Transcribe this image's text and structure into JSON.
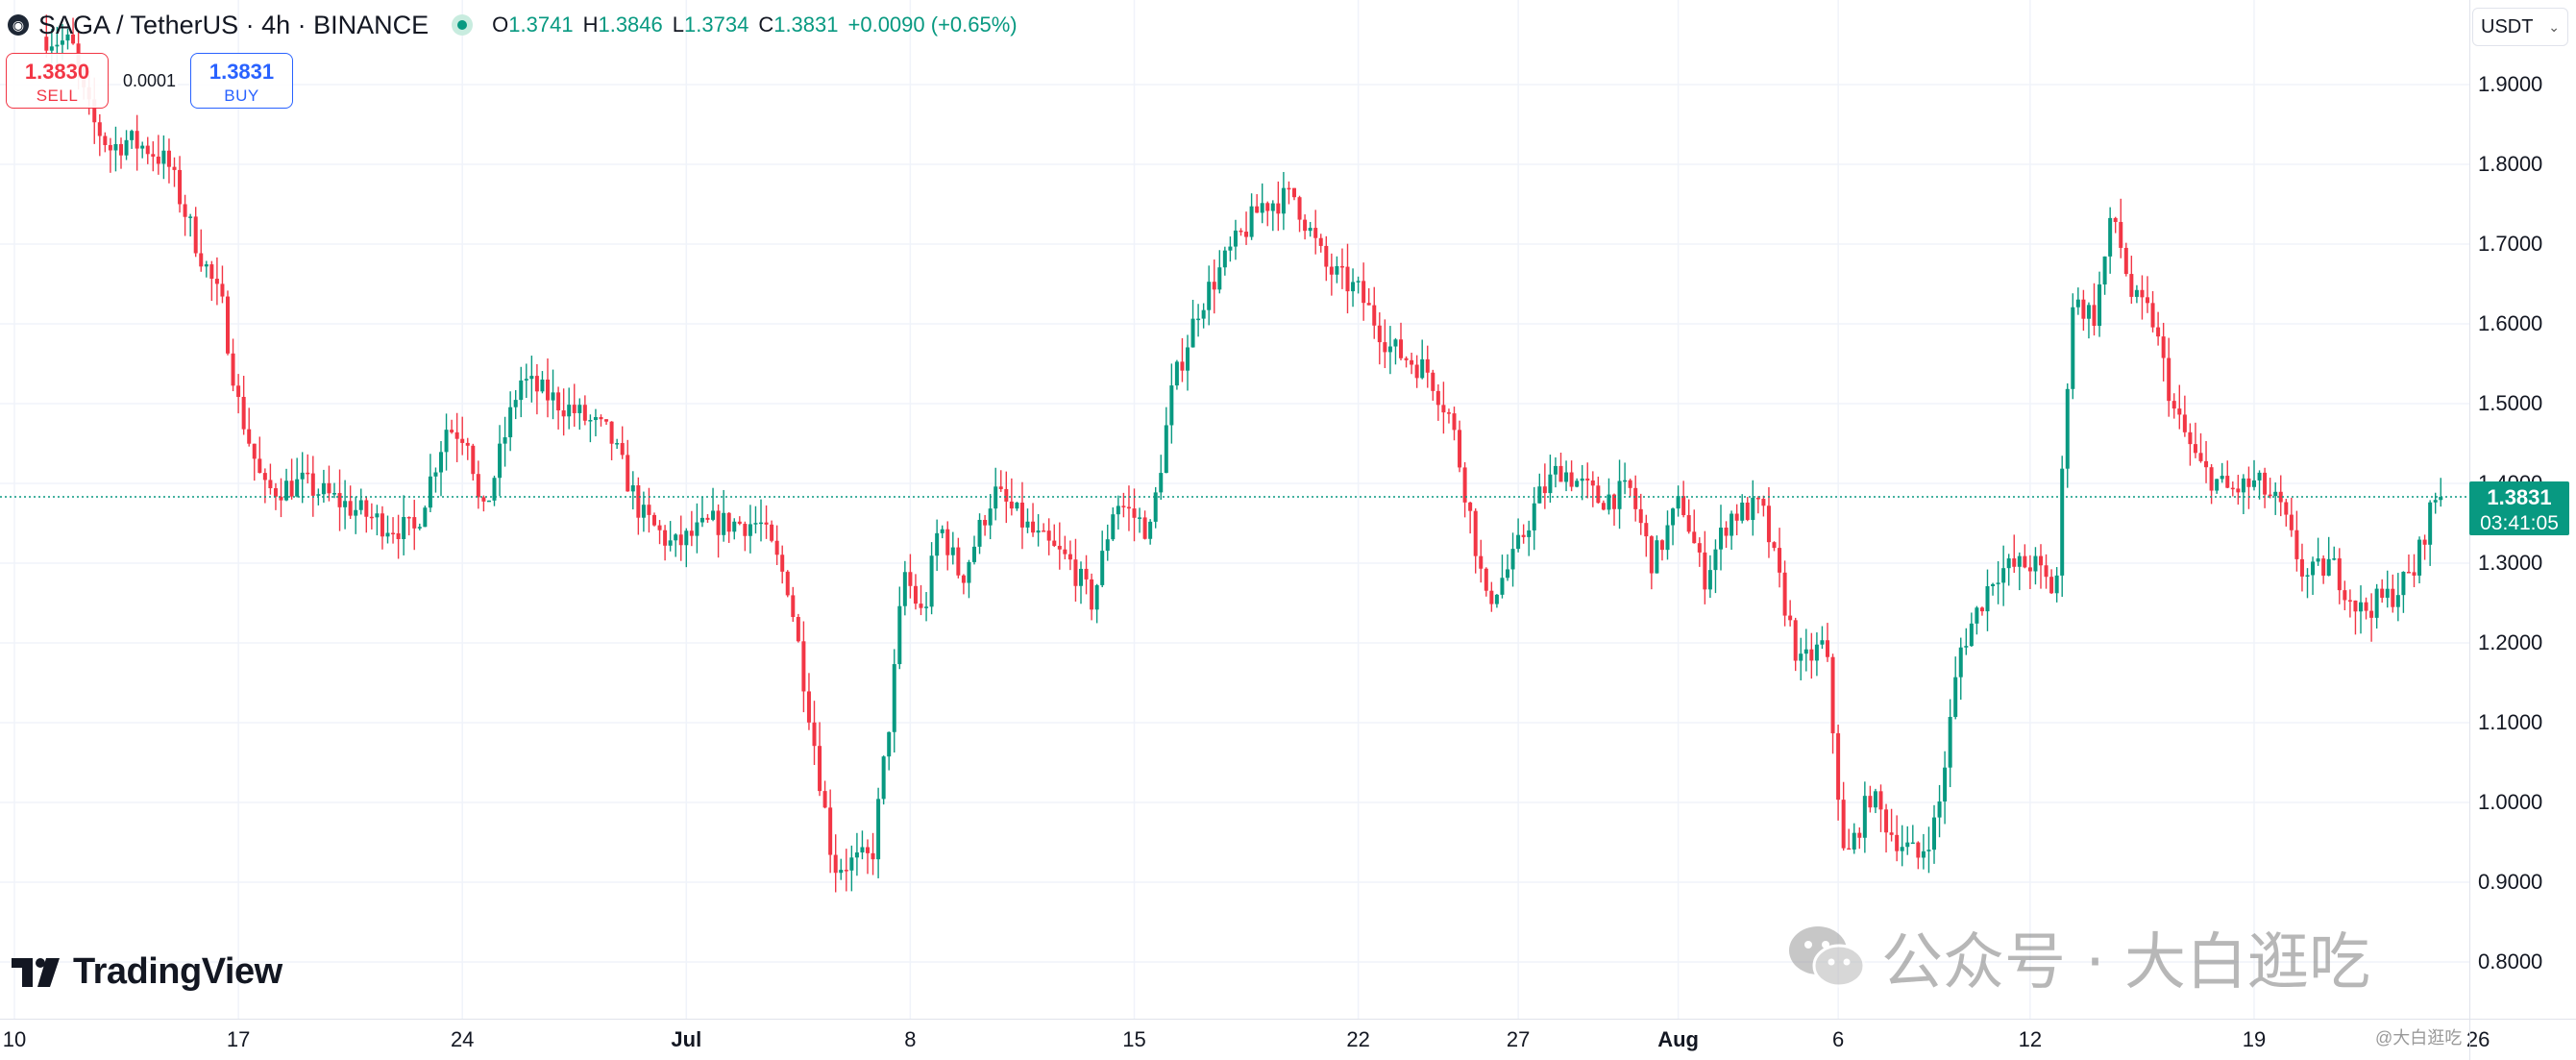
{
  "legend": {
    "title": "SAGA / TetherUS · 4h · BINANCE",
    "ohlc": [
      {
        "key": "O",
        "value": "1.3741"
      },
      {
        "key": "H",
        "value": "1.3846"
      },
      {
        "key": "L",
        "value": "1.3734"
      },
      {
        "key": "C",
        "value": "1.3831"
      }
    ],
    "change": "+0.0090 (+0.65%)"
  },
  "trade": {
    "sell_price": "1.3830",
    "sell_label": "SELL",
    "buy_price": "1.3831",
    "buy_label": "BUY",
    "spread": "0.0001"
  },
  "currency": "USDT",
  "current_price": {
    "value": "1.3831",
    "countdown": "03:41:05"
  },
  "branding": {
    "logo_text": "TradingView",
    "watermark": "公众号 · 大白逛吃",
    "small_watermark": "@大白逛吃"
  },
  "colors": {
    "up": "#089981",
    "down": "#f23645",
    "price_line": "#089981"
  },
  "chart_data": {
    "type": "candlestick",
    "title": "SAGA / TetherUS · 4h · BINANCE",
    "ylim": [
      0.75,
      1.98
    ],
    "y_ticks": [
      "1.9000",
      "1.8000",
      "1.7000",
      "1.6000",
      "1.5000",
      "1.4000",
      "1.3000",
      "1.2000",
      "1.1000",
      "1.0000",
      "0.9000",
      "0.8000"
    ],
    "x_ticks": [
      {
        "label": "10",
        "day": 0
      },
      {
        "label": "17",
        "day": 7
      },
      {
        "label": "24",
        "day": 14
      },
      {
        "label": "Jul",
        "day": 21
      },
      {
        "label": "8",
        "day": 28
      },
      {
        "label": "15",
        "day": 35
      },
      {
        "label": "22",
        "day": 42
      },
      {
        "label": "27",
        "day": 47
      },
      {
        "label": "Aug",
        "day": 52
      },
      {
        "label": "6",
        "day": 57
      },
      {
        "label": "12",
        "day": 63
      },
      {
        "label": "19",
        "day": 70
      },
      {
        "label": "26",
        "day": 77
      }
    ],
    "path_points": [
      [
        1.0,
        1.96
      ],
      [
        1.8,
        1.95
      ],
      [
        2.2,
        1.88
      ],
      [
        2.5,
        1.85
      ],
      [
        3.0,
        1.82
      ],
      [
        3.5,
        1.83
      ],
      [
        4.2,
        1.82
      ],
      [
        4.8,
        1.8
      ],
      [
        5.6,
        1.71
      ],
      [
        6.5,
        1.62
      ],
      [
        7.0,
        1.5
      ],
      [
        7.8,
        1.39
      ],
      [
        9.0,
        1.4
      ],
      [
        10.0,
        1.38
      ],
      [
        11.5,
        1.35
      ],
      [
        12.5,
        1.34
      ],
      [
        13.5,
        1.47
      ],
      [
        14.2,
        1.46
      ],
      [
        14.6,
        1.35
      ],
      [
        15.8,
        1.53
      ],
      [
        17.5,
        1.49
      ],
      [
        18.6,
        1.46
      ],
      [
        19.6,
        1.36
      ],
      [
        20.6,
        1.32
      ],
      [
        21.8,
        1.35
      ],
      [
        23.3,
        1.35
      ],
      [
        24.2,
        1.27
      ],
      [
        24.9,
        1.1
      ],
      [
        25.6,
        0.92
      ],
      [
        26.8,
        0.93
      ],
      [
        27.4,
        1.12
      ],
      [
        27.8,
        1.29
      ],
      [
        28.4,
        1.23
      ],
      [
        28.9,
        1.35
      ],
      [
        29.6,
        1.28
      ],
      [
        30.6,
        1.39
      ],
      [
        32.0,
        1.33
      ],
      [
        33.0,
        1.3
      ],
      [
        33.7,
        1.25
      ],
      [
        34.4,
        1.38
      ],
      [
        35.5,
        1.34
      ],
      [
        36.2,
        1.52
      ],
      [
        37.0,
        1.62
      ],
      [
        38.0,
        1.69
      ],
      [
        39.0,
        1.75
      ],
      [
        40.0,
        1.76
      ],
      [
        41.0,
        1.67
      ],
      [
        42.0,
        1.64
      ],
      [
        43.0,
        1.57
      ],
      [
        44.2,
        1.54
      ],
      [
        44.9,
        1.48
      ],
      [
        45.5,
        1.36
      ],
      [
        46.0,
        1.25
      ],
      [
        46.8,
        1.3
      ],
      [
        47.6,
        1.38
      ],
      [
        48.3,
        1.42
      ],
      [
        49.5,
        1.38
      ],
      [
        50.5,
        1.39
      ],
      [
        51.2,
        1.3
      ],
      [
        52.1,
        1.38
      ],
      [
        52.8,
        1.28
      ],
      [
        53.6,
        1.36
      ],
      [
        54.6,
        1.37
      ],
      [
        55.8,
        1.17
      ],
      [
        56.6,
        1.2
      ],
      [
        57.2,
        0.92
      ],
      [
        58.0,
        1.01
      ],
      [
        58.7,
        0.96
      ],
      [
        59.5,
        0.93
      ],
      [
        60.1,
        0.98
      ],
      [
        60.8,
        1.19
      ],
      [
        61.9,
        1.29
      ],
      [
        63.1,
        1.3
      ],
      [
        63.8,
        1.26
      ],
      [
        64.3,
        1.63
      ],
      [
        65.0,
        1.61
      ],
      [
        65.6,
        1.74
      ],
      [
        66.2,
        1.63
      ],
      [
        66.8,
        1.61
      ],
      [
        67.5,
        1.49
      ],
      [
        68.3,
        1.42
      ],
      [
        69.2,
        1.39
      ],
      [
        70.1,
        1.4
      ],
      [
        70.8,
        1.37
      ],
      [
        71.6,
        1.28
      ],
      [
        72.4,
        1.3
      ],
      [
        73.3,
        1.24
      ],
      [
        74.3,
        1.26
      ],
      [
        75.0,
        1.29
      ],
      [
        75.6,
        1.38
      ],
      [
        75.9,
        1.383
      ]
    ]
  }
}
